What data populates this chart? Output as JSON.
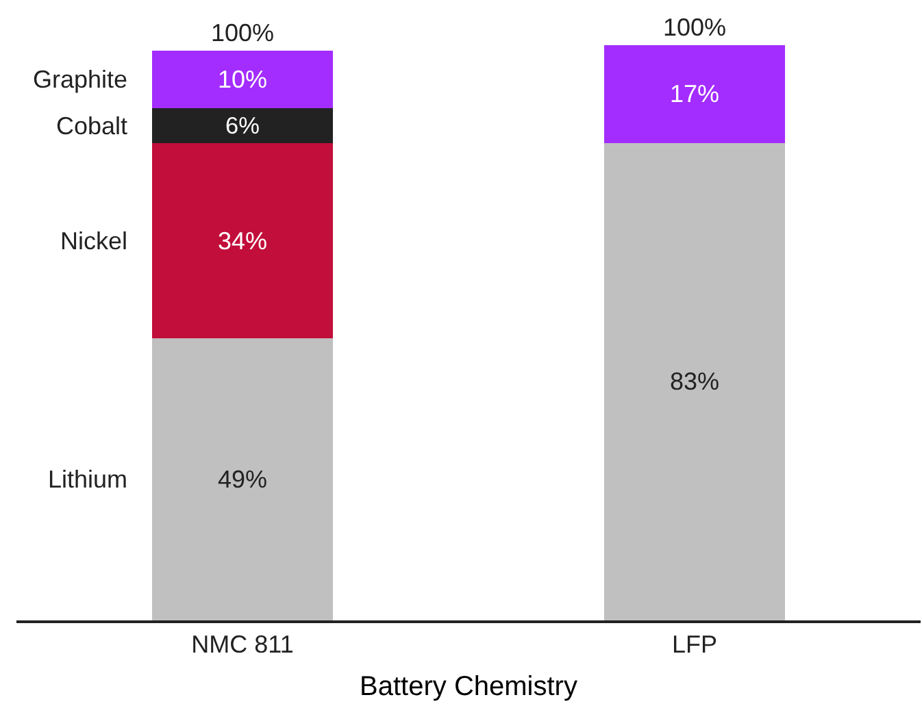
{
  "chart_data": {
    "type": "bar",
    "xlabel": "Battery Chemistry",
    "categories": [
      "NMC 811",
      "LFP"
    ],
    "stacked": true,
    "ylim": [
      0,
      100
    ],
    "tick_labels": "x",
    "grid": false,
    "legend": false,
    "series": [
      {
        "name": "Lithium",
        "color": "#c0c0c0",
        "values": [
          49,
          83
        ],
        "value_labels": [
          "49%",
          "83%"
        ]
      },
      {
        "name": "Nickel",
        "color": "#c20e3a",
        "values": [
          34,
          null
        ],
        "value_labels": [
          "34%",
          null
        ]
      },
      {
        "name": "Cobalt",
        "color": "#222222",
        "values": [
          6,
          null
        ],
        "value_labels": [
          "6%",
          null
        ]
      },
      {
        "name": "Graphite",
        "color": "#a32cff",
        "values": [
          10,
          17
        ],
        "value_labels": [
          "10%",
          "17%"
        ]
      }
    ],
    "totals": [
      "100%",
      "100%"
    ]
  }
}
